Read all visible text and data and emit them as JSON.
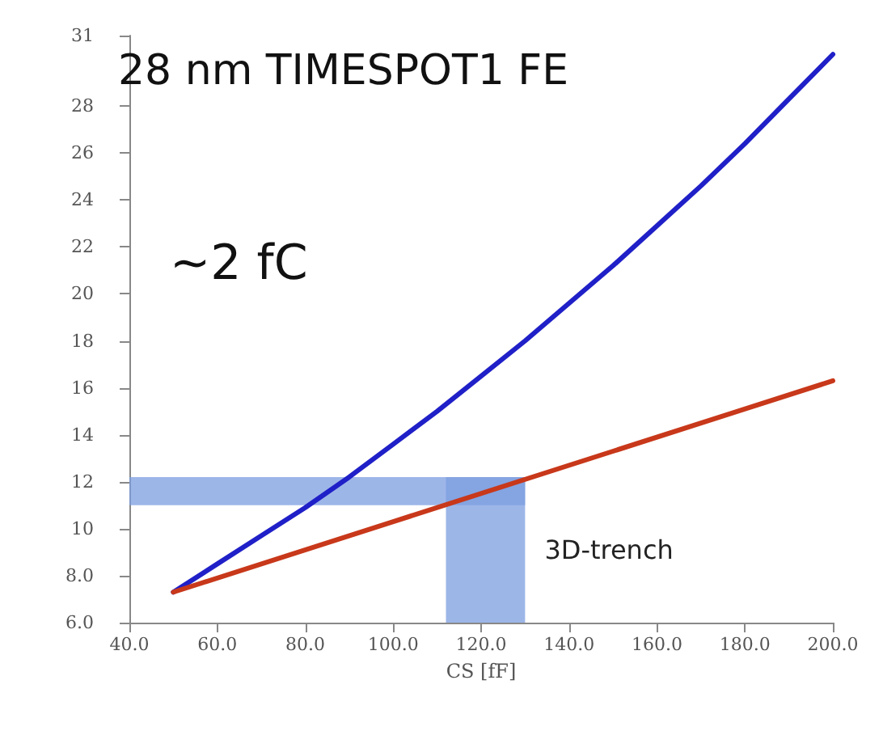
{
  "chart_data": {
    "type": "line",
    "title": "28 nm TIMESPOT1 FE",
    "xlabel": "CS [fF]",
    "annotations": [
      "~2 fC"
    ],
    "x": [
      50,
      60,
      70,
      80,
      90,
      100,
      110,
      120,
      130,
      140,
      150,
      160,
      170,
      180,
      190,
      200
    ],
    "series": [
      {
        "color": "#2020c8",
        "values": [
          7.3,
          8.5,
          9.7,
          10.9,
          12.2,
          13.6,
          15.0,
          16.5,
          18.0,
          19.6,
          21.2,
          22.9,
          24.6,
          26.4,
          28.3,
          30.2
        ]
      },
      {
        "color": "#c8381a",
        "x": [
          50,
          100,
          150,
          200
        ],
        "values": [
          7.3,
          10.3,
          13.3,
          16.3
        ]
      }
    ],
    "bands": [
      {
        "axis": "y",
        "from": 11,
        "to": 12.2,
        "color": "#7c9ee0"
      },
      {
        "axis": "x",
        "from": 112,
        "to": 130,
        "color": "#7c9ee0",
        "label": "3D-trench"
      }
    ],
    "xlim": [
      40,
      200
    ],
    "xticks": [
      {
        "value": 40,
        "label": "40.0"
      },
      {
        "value": 60,
        "label": "60.0"
      },
      {
        "value": 80,
        "label": "80.0"
      },
      {
        "value": 100,
        "label": "100.0"
      },
      {
        "value": 120,
        "label": "120.0"
      },
      {
        "value": 140,
        "label": "140.0"
      },
      {
        "value": 160,
        "label": "160.0"
      },
      {
        "value": 180,
        "label": "180.0"
      },
      {
        "value": 200,
        "label": "200.0"
      }
    ],
    "ylim": [
      6,
      31
    ],
    "yticks": [
      {
        "value": 6,
        "label": "6.0"
      },
      {
        "value": 8,
        "label": "8.0"
      },
      10,
      12,
      14,
      16,
      18,
      20,
      22,
      24,
      26,
      28,
      31
    ],
    "marker": "none",
    "line_style": "solid"
  }
}
